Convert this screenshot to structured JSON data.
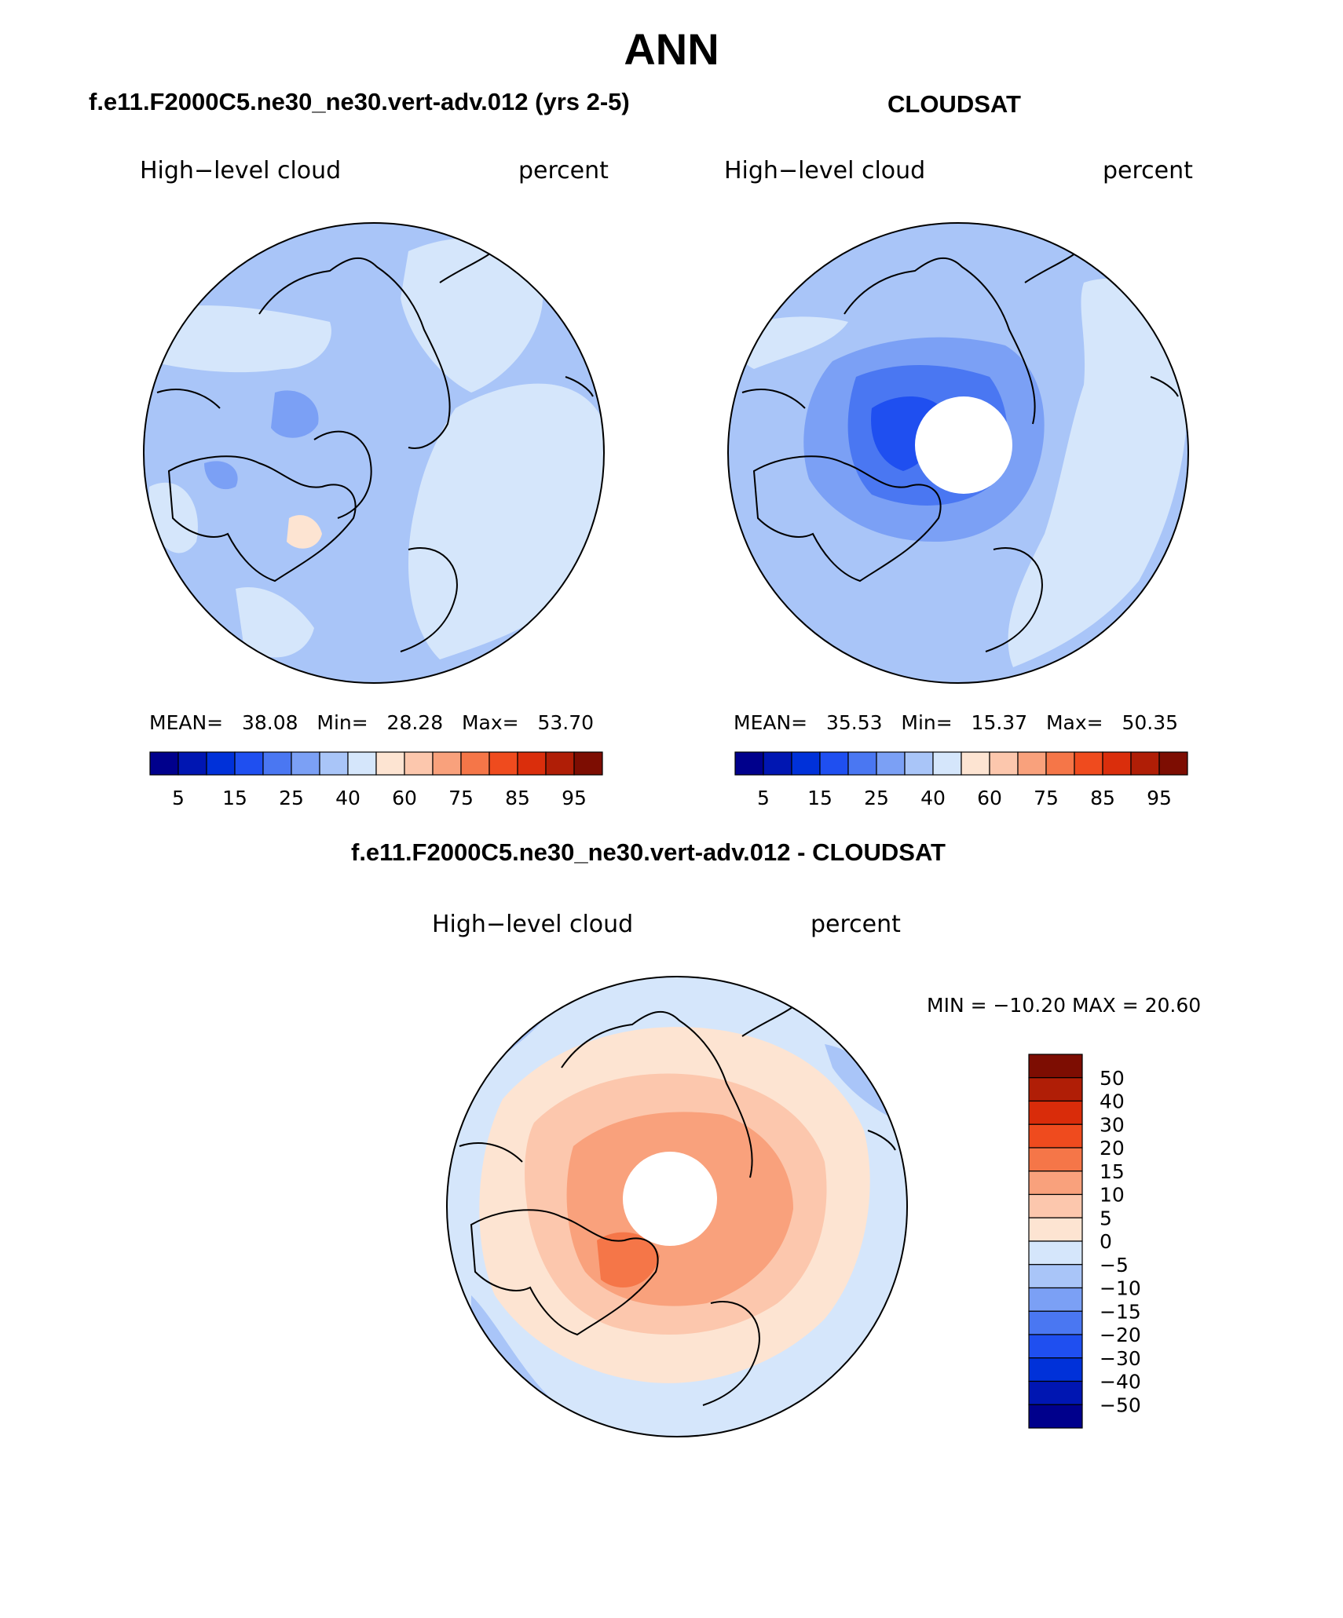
{
  "title": "ANN",
  "panels": [
    {
      "name": "model",
      "title": "f.e11.F2000C5.ne30_ne30.vert-adv.012 (yrs 2-5)",
      "variable": "High−level cloud",
      "units": "percent",
      "stats": {
        "mean_label": "MEAN=",
        "mean": "38.08",
        "min_label": "Min=",
        "min": "28.28",
        "max_label": "Max=",
        "max": "53.70"
      },
      "colorbar_labels": [
        "5",
        "15",
        "25",
        "40",
        "60",
        "75",
        "85",
        "95"
      ]
    },
    {
      "name": "obs",
      "title": "CLOUDSAT",
      "variable": "High−level cloud",
      "units": "percent",
      "stats": {
        "mean_label": "MEAN=",
        "mean": "35.53",
        "min_label": "Min=",
        "min": "15.37",
        "max_label": "Max=",
        "max": "50.35"
      },
      "colorbar_labels": [
        "5",
        "15",
        "25",
        "40",
        "60",
        "75",
        "85",
        "95"
      ]
    }
  ],
  "diff": {
    "title": "f.e11.F2000C5.ne30_ne30.vert-adv.012 - CLOUDSAT",
    "variable": "High−level cloud",
    "units": "percent",
    "minmax": "MIN = −10.20 MAX =   20.60",
    "colorbar_labels": [
      "50",
      "40",
      "30",
      "20",
      "15",
      "10",
      "5",
      "0",
      "−5",
      "−10",
      "−15",
      "−20",
      "−30",
      "−40",
      "−50"
    ]
  },
  "colors": {
    "seq": [
      "#00008c",
      "#0016b2",
      "#0031d9",
      "#1f4ff0",
      "#4a77f2",
      "#7ba0f5",
      "#a9c5f8",
      "#d5e6fb",
      "#fde4d2",
      "#fcc7ad",
      "#f9a17c",
      "#f57648",
      "#ef4b1e",
      "#da2e0c",
      "#b01e06",
      "#7d0d02"
    ],
    "diff": [
      "#7d0d02",
      "#b01e06",
      "#d92c0a",
      "#ef4b1e",
      "#f57648",
      "#f9a17c",
      "#fcc7ad",
      "#fde4d2",
      "#d5e6fb",
      "#a9c5f8",
      "#7ba0f5",
      "#4a77f2",
      "#1f4ff0",
      "#0031d9",
      "#0016b2",
      "#00008c"
    ]
  }
}
